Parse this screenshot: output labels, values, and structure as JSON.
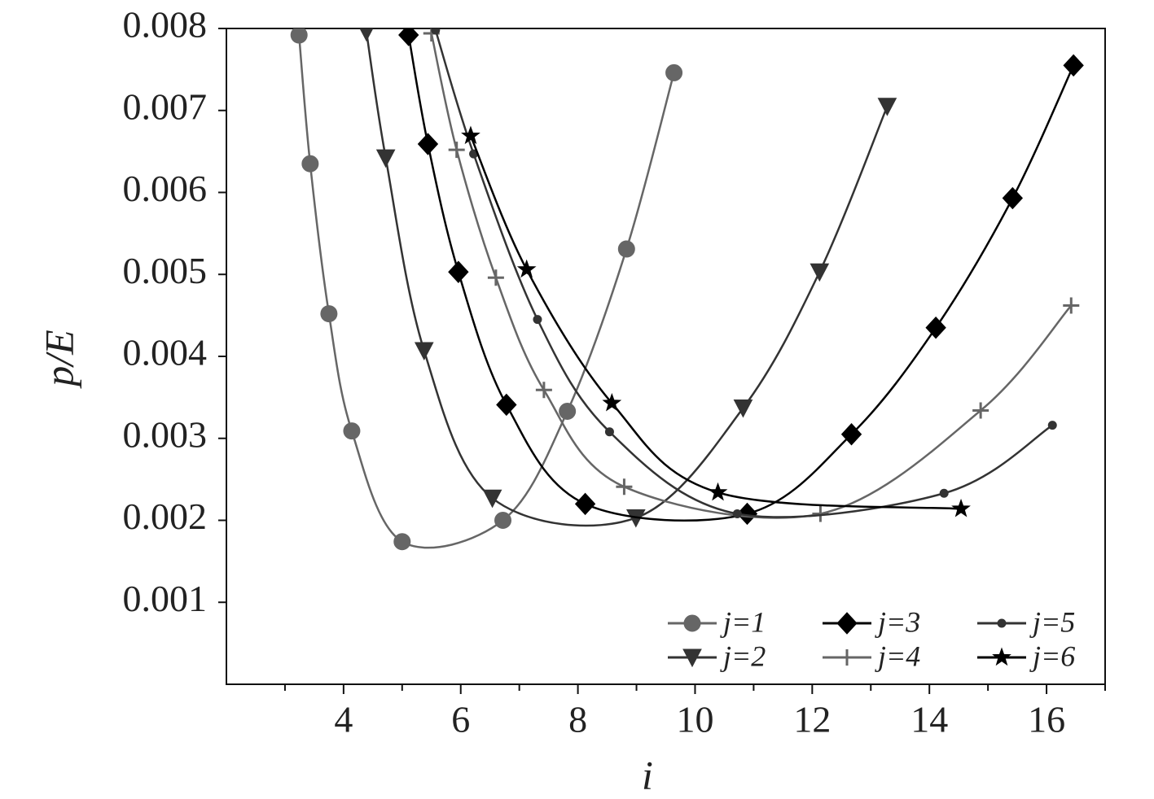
{
  "chart_data": {
    "type": "line",
    "x_label": "i",
    "y_label": "p/E",
    "xlim": [
      2,
      17
    ],
    "xticks": [
      4,
      6,
      8,
      10,
      12,
      14,
      16
    ],
    "xminor_ticks": [
      3,
      5,
      7,
      9,
      11,
      13,
      15,
      17
    ],
    "ylim": [
      0,
      0.008
    ],
    "yticks": [
      0.001,
      0.002,
      0.003,
      0.004,
      0.005,
      0.006,
      0.007,
      0.008
    ],
    "legend": "lower right",
    "legend_columns": 3,
    "series": [
      {
        "name": "j=1",
        "color": "#666666",
        "marker": "circle",
        "x": [
          3.24,
          3.43,
          3.75,
          4.14,
          5.0,
          6.72,
          7.82,
          8.83,
          9.64
        ],
        "values": [
          0.00792,
          0.00635,
          0.00452,
          0.00309,
          0.00174,
          0.002,
          0.00333,
          0.00531,
          0.00746
        ]
      },
      {
        "name": "j=2",
        "color": "#333333",
        "marker": "triangle-down",
        "x": [
          4.39,
          4.72,
          5.375,
          6.54,
          8.99,
          10.82,
          12.125,
          13.28
        ],
        "values": [
          0.00796,
          0.00642,
          0.00407,
          0.00227,
          0.00203,
          0.00337,
          0.00503,
          0.00705
        ]
      },
      {
        "name": "j=3",
        "color": "#000000",
        "marker": "diamond",
        "x": [
          5.11,
          5.44,
          5.96,
          6.78,
          8.125,
          10.89,
          12.67,
          14.11,
          15.42,
          16.46
        ],
        "values": [
          0.00792,
          0.00659,
          0.00503,
          0.00341,
          0.0022,
          0.00208,
          0.00305,
          0.00435,
          0.00593,
          0.00755
        ]
      },
      {
        "name": "j=4",
        "color": "#666666",
        "marker": "plus",
        "x": [
          5.5,
          5.93,
          6.6,
          7.42,
          8.79,
          12.14,
          14.875,
          16.42
        ],
        "values": [
          0.00794,
          0.00652,
          0.00496,
          0.00359,
          0.00241,
          0.00208,
          0.00334,
          0.00462
        ]
      },
      {
        "name": "j=5",
        "color": "#333333",
        "marker": "dot",
        "x": [
          5.57,
          6.22,
          7.31,
          8.54,
          10.72,
          14.25,
          16.1
        ],
        "values": [
          0.00798,
          0.00647,
          0.00445,
          0.00308,
          0.00208,
          0.00233,
          0.00316
        ]
      },
      {
        "name": "j=6",
        "color": "#000000",
        "marker": "star",
        "x": [
          6.17,
          7.125,
          8.58,
          10.39,
          14.54
        ],
        "values": [
          0.00669,
          0.00506,
          0.00343,
          0.00234,
          0.00214
        ]
      }
    ]
  }
}
